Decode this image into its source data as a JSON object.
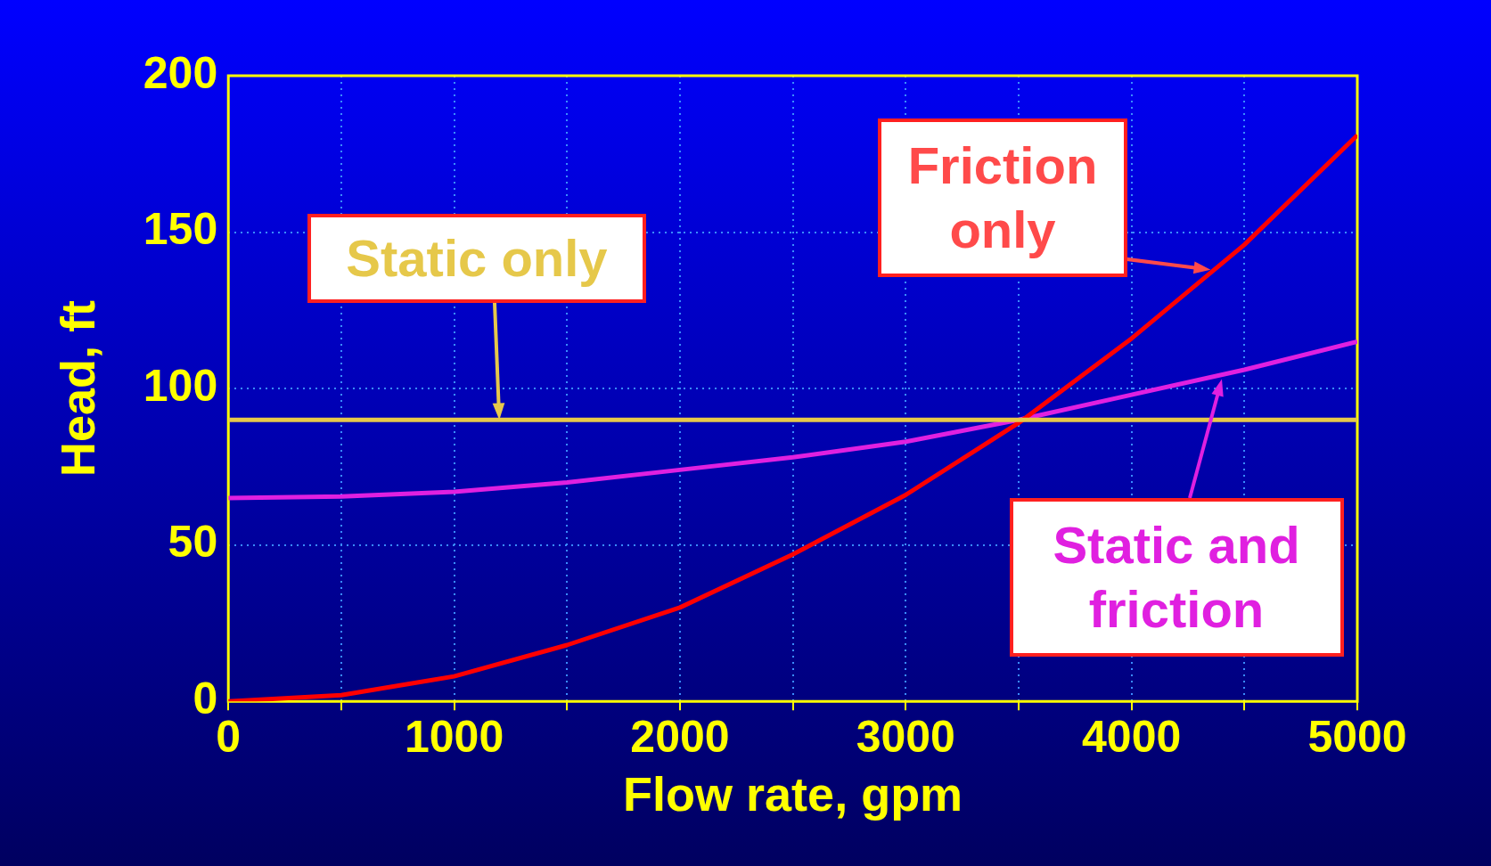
{
  "chart_data": {
    "type": "line",
    "xlabel": "Flow rate, gpm",
    "ylabel": "Head, ft",
    "xlim": [
      0,
      5000
    ],
    "ylim": [
      0,
      200
    ],
    "xticks": [
      0,
      {
        "value": 500,
        "label": null
      },
      1000,
      {
        "value": 1500,
        "label": null
      },
      2000,
      {
        "value": 2500,
        "label": null
      },
      3000,
      {
        "value": 3500,
        "label": null
      },
      4000,
      {
        "value": 4500,
        "label": null
      },
      5000
    ],
    "yticks": [
      0,
      50,
      100,
      150,
      200
    ],
    "grid": true,
    "legend": false,
    "marker": "none",
    "line_style": "solid",
    "annotations": [
      {
        "text": "Static only",
        "x": 1200,
        "y": 90
      },
      {
        "text": "Friction only",
        "x": 4350,
        "y": 138
      },
      {
        "text": "Static and friction",
        "x": 4400,
        "y": 103
      }
    ],
    "series": [
      {
        "color": "#e6c84a",
        "x": [
          0,
          5000
        ],
        "values": [
          90,
          90
        ]
      },
      {
        "color": "#ff0000",
        "x": [
          0,
          500,
          1000,
          1500,
          2000,
          2500,
          3000,
          3500,
          4000,
          4500,
          5000
        ],
        "values": [
          0,
          2,
          8,
          18,
          30,
          47,
          66,
          89,
          116,
          146,
          181
        ]
      },
      {
        "color": "#e020e0",
        "x": [
          0,
          500,
          1000,
          1500,
          2000,
          2500,
          3000,
          3500,
          4000,
          4500,
          5000
        ],
        "values": [
          65,
          65.5,
          67,
          70,
          74,
          78,
          83,
          90,
          98,
          106,
          115
        ]
      }
    ]
  }
}
